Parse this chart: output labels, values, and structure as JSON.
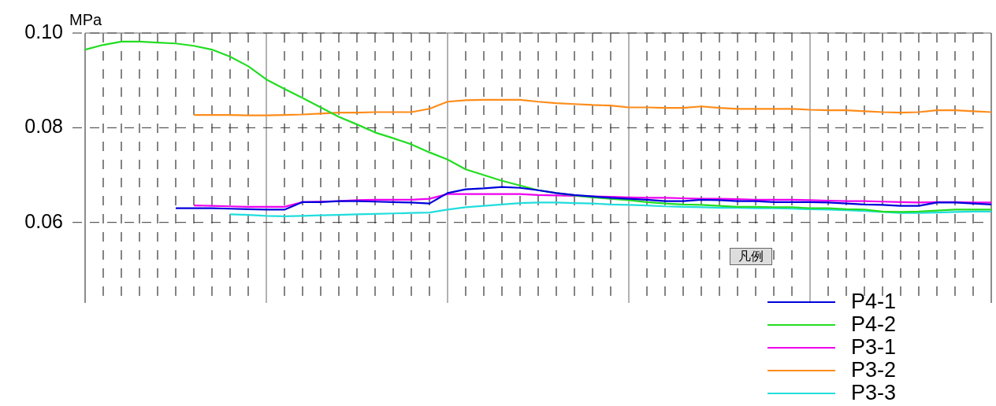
{
  "chart_data": {
    "type": "line",
    "ylabel": "MPa",
    "legend_title": "凡例",
    "categories": [
      null,
      null,
      null,
      null,
      null,
      null,
      null,
      null,
      null,
      null,
      null,
      null,
      null,
      null,
      null,
      null,
      null,
      null,
      null,
      null,
      null,
      null,
      null,
      null,
      null,
      null,
      null,
      null,
      null,
      null,
      null,
      null,
      null,
      null,
      null,
      null,
      null,
      null,
      null,
      null,
      null,
      null,
      null,
      null,
      null,
      null,
      null,
      null,
      null,
      null,
      null
    ],
    "series": [
      {
        "name": "P4-1",
        "color": "#0000dd",
        "values": [
          null,
          null,
          null,
          null,
          null,
          0.063,
          0.063,
          0.063,
          0.0629,
          0.0628,
          0.0627,
          0.0627,
          0.0643,
          0.0643,
          0.0645,
          0.0645,
          0.0644,
          0.0643,
          0.0642,
          0.064,
          0.0662,
          0.067,
          0.0672,
          0.0675,
          0.0673,
          0.0668,
          0.0662,
          0.0658,
          0.0655,
          0.0652,
          0.065,
          0.0648,
          0.0645,
          0.0645,
          0.0648,
          0.0647,
          0.0645,
          0.0645,
          0.0643,
          0.0643,
          0.0643,
          0.0642,
          0.064,
          0.0638,
          0.0637,
          0.0635,
          0.0635,
          0.0642,
          0.0642,
          0.064,
          0.0638
        ]
      },
      {
        "name": "P4-2",
        "color": "#22dd22",
        "values": [
          0.0965,
          0.0975,
          0.0982,
          0.0982,
          0.098,
          0.0978,
          0.0973,
          0.0965,
          0.095,
          0.093,
          0.0902,
          0.0882,
          0.0863,
          0.0843,
          0.0823,
          0.0807,
          0.079,
          0.0778,
          0.0765,
          0.0748,
          0.0733,
          0.0712,
          0.07,
          0.0688,
          0.0678,
          0.0668,
          0.0662,
          0.0657,
          0.0653,
          0.065,
          0.0647,
          0.0643,
          0.064,
          0.0638,
          0.0637,
          0.0635,
          0.0633,
          0.0633,
          0.0632,
          0.0632,
          0.063,
          0.063,
          0.0628,
          0.0627,
          0.0623,
          0.0622,
          0.0623,
          0.0625,
          0.0627,
          0.0627,
          0.0627
        ]
      },
      {
        "name": "P3-1",
        "color": "#ee00ee",
        "values": [
          null,
          null,
          null,
          null,
          null,
          null,
          0.0636,
          0.0635,
          0.0634,
          0.0633,
          0.0633,
          0.0633,
          0.0643,
          0.0644,
          0.0645,
          0.0647,
          0.0648,
          0.0648,
          0.0648,
          0.065,
          0.066,
          0.066,
          0.066,
          0.066,
          0.066,
          0.0658,
          0.0657,
          0.0656,
          0.0655,
          0.0654,
          0.0653,
          0.0652,
          0.0652,
          0.0651,
          0.065,
          0.065,
          0.0649,
          0.0648,
          0.0648,
          0.0648,
          0.0647,
          0.0646,
          0.0645,
          0.0645,
          0.0644,
          0.0643,
          0.0642,
          0.0643,
          0.0643,
          0.0642,
          0.0642
        ]
      },
      {
        "name": "P3-2",
        "color": "#ff8c1a",
        "values": [
          null,
          null,
          null,
          null,
          null,
          null,
          0.0827,
          0.0827,
          0.0827,
          0.0826,
          0.0826,
          0.0827,
          0.0828,
          0.083,
          0.0832,
          0.0832,
          0.0833,
          0.0833,
          0.0833,
          0.084,
          0.0855,
          0.0858,
          0.0859,
          0.0859,
          0.0859,
          0.0855,
          0.0852,
          0.085,
          0.0848,
          0.0847,
          0.0843,
          0.0843,
          0.0842,
          0.0842,
          0.0845,
          0.0842,
          0.084,
          0.084,
          0.084,
          0.084,
          0.0838,
          0.0837,
          0.0837,
          0.0835,
          0.0833,
          0.0832,
          0.0833,
          0.0837,
          0.0837,
          0.0835,
          0.0833
        ]
      },
      {
        "name": "P3-3",
        "color": "#22dddd",
        "values": [
          null,
          null,
          null,
          null,
          null,
          null,
          null,
          null,
          0.0617,
          0.0616,
          0.0614,
          0.0613,
          0.0614,
          0.0615,
          0.0616,
          0.0617,
          0.0618,
          0.0619,
          0.062,
          0.0621,
          0.0627,
          0.0632,
          0.0635,
          0.0638,
          0.0641,
          0.0642,
          0.0642,
          0.0641,
          0.064,
          0.0638,
          0.0637,
          0.0636,
          0.0634,
          0.0633,
          0.0632,
          0.0631,
          0.0631,
          0.063,
          0.063,
          0.0629,
          0.0628,
          0.0627,
          0.0626,
          0.0624,
          0.0622,
          0.062,
          0.062,
          0.0621,
          0.0622,
          0.0623,
          0.0623
        ]
      }
    ],
    "ylim": [
      0.043,
      0.1
    ],
    "yticks": [
      {
        "value": 0.06,
        "label": "0.06"
      },
      {
        "value": 0.08,
        "label": "0.08"
      },
      {
        "value": 0.1,
        "label": "0.10"
      }
    ],
    "grid": true,
    "legend": "bottom right",
    "marker": "none",
    "line_style": "solid"
  }
}
